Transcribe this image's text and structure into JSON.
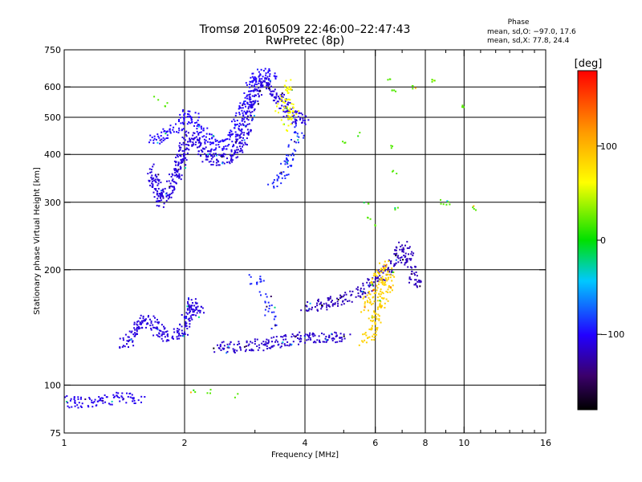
{
  "chart_data": {
    "type": "scatter",
    "title": "Tromsø 20160509 22:46:00–22:47:43",
    "subtitle": "RwPretec (8p)",
    "xlabel": "Frequency [MHz]",
    "ylabel": "Stationary phase Virtual Height [km]",
    "x_scale": "log",
    "y_scale": "log",
    "xlim": [
      1,
      16
    ],
    "ylim": [
      75,
      750
    ],
    "x_ticks": [
      1,
      2,
      4,
      6,
      8,
      10,
      16
    ],
    "x_tick_labels": [
      "1",
      "2",
      "4",
      "6",
      "8",
      "10",
      "16"
    ],
    "x_gridlines": [
      2,
      4,
      6,
      8,
      10
    ],
    "y_ticks": [
      75,
      100,
      200,
      300,
      400,
      500,
      600,
      750
    ],
    "y_tick_labels": [
      "75",
      "100",
      "200",
      "300",
      "400",
      "500",
      "600",
      "750"
    ],
    "y_gridlines": [
      100,
      200,
      300,
      400,
      500,
      600
    ],
    "grid": true,
    "color_by": "phase_deg",
    "colorbar": {
      "label": "[deg]",
      "range": [
        -180,
        180
      ],
      "tick_values": [
        100,
        0,
        -100
      ],
      "tick_labels": [
        "100",
        "0",
        "−100"
      ]
    },
    "stats": {
      "heading": "Phase",
      "line_O": "mean, sd,O: −97.0, 17.6",
      "line_X": "mean, sd,X:  77.8, 24.4"
    },
    "clusters": [
      {
        "name": "F-region O-trace",
        "phase_deg": -110,
        "density": 1.6,
        "points": [
          [
            1.65,
            370
          ],
          [
            1.7,
            330
          ],
          [
            1.75,
            300
          ],
          [
            1.85,
            330
          ],
          [
            1.95,
            380
          ],
          [
            2.0,
            420
          ],
          [
            2.1,
            450
          ],
          [
            2.2,
            420
          ],
          [
            2.3,
            390
          ],
          [
            2.45,
            385
          ],
          [
            2.6,
            390
          ],
          [
            2.75,
            420
          ],
          [
            2.85,
            470
          ],
          [
            2.95,
            540
          ],
          [
            3.05,
            600
          ],
          [
            3.15,
            620
          ],
          [
            3.3,
            600
          ],
          [
            3.45,
            560
          ],
          [
            3.6,
            520
          ],
          [
            3.8,
            490
          ],
          [
            4.0,
            500
          ]
        ]
      },
      {
        "name": "F-region upper spread",
        "phase_deg": -100,
        "density": 1.2,
        "points": [
          [
            1.65,
            430
          ],
          [
            1.75,
            450
          ],
          [
            1.9,
            470
          ],
          [
            2.05,
            510
          ],
          [
            2.2,
            470
          ],
          [
            2.4,
            420
          ],
          [
            2.6,
            430
          ],
          [
            2.8,
            520
          ],
          [
            3.0,
            640
          ],
          [
            3.2,
            650
          ],
          [
            3.35,
            640
          ]
        ]
      },
      {
        "name": "F-region inner retrace",
        "phase_deg": -90,
        "density": 0.8,
        "points": [
          [
            3.3,
            330
          ],
          [
            3.45,
            340
          ],
          [
            3.6,
            370
          ],
          [
            3.75,
            420
          ],
          [
            3.9,
            460
          ]
        ]
      },
      {
        "name": "Phase noise near 3.6 MHz",
        "phase_deg": 60,
        "density": 0.6,
        "points": [
          [
            3.45,
            520
          ],
          [
            3.55,
            570
          ],
          [
            3.65,
            610
          ],
          [
            3.6,
            470
          ],
          [
            3.75,
            530
          ]
        ]
      },
      {
        "name": "Es / low layer 1-1.4 MHz",
        "phase_deg": -105,
        "density": 1.0,
        "points": [
          [
            1.0,
            91
          ],
          [
            1.05,
            90
          ],
          [
            1.1,
            90
          ],
          [
            1.18,
            90
          ],
          [
            1.26,
            91
          ],
          [
            1.33,
            92
          ],
          [
            1.4,
            93
          ],
          [
            1.48,
            92
          ],
          [
            1.55,
            93
          ]
        ]
      },
      {
        "name": "E-region trace",
        "phase_deg": -110,
        "density": 1.4,
        "points": [
          [
            1.4,
            126
          ],
          [
            1.45,
            130
          ],
          [
            1.52,
            140
          ],
          [
            1.6,
            150
          ],
          [
            1.7,
            140
          ],
          [
            1.8,
            133
          ],
          [
            1.9,
            135
          ],
          [
            2.0,
            140
          ],
          [
            2.05,
            155
          ],
          [
            2.1,
            165
          ],
          [
            2.2,
            150
          ]
        ]
      },
      {
        "name": "Valley trace 2.4-4 MHz",
        "phase_deg": -115,
        "density": 1.2,
        "points": [
          [
            2.4,
            126
          ],
          [
            2.6,
            125
          ],
          [
            2.8,
            126
          ],
          [
            3.0,
            127
          ],
          [
            3.2,
            128
          ],
          [
            3.4,
            129
          ],
          [
            3.6,
            131
          ],
          [
            3.8,
            132
          ],
          [
            4.0,
            133
          ],
          [
            4.2,
            133
          ],
          [
            4.5,
            134
          ],
          [
            4.8,
            133
          ],
          [
            5.1,
            135
          ]
        ]
      },
      {
        "name": "Lower F2 O-trace",
        "phase_deg": -120,
        "density": 1.2,
        "points": [
          [
            4.0,
            160
          ],
          [
            4.3,
            162
          ],
          [
            4.6,
            164
          ],
          [
            4.9,
            166
          ],
          [
            5.2,
            170
          ],
          [
            5.5,
            175
          ],
          [
            5.8,
            180
          ],
          [
            6.1,
            190
          ],
          [
            6.4,
            200
          ],
          [
            6.7,
            210
          ],
          [
            7.0,
            230
          ],
          [
            7.2,
            220
          ],
          [
            7.4,
            200
          ],
          [
            7.6,
            180
          ]
        ]
      },
      {
        "name": "X-trace",
        "phase_deg": 85,
        "density": 1.2,
        "points": [
          [
            5.6,
            130
          ],
          [
            5.8,
            135
          ],
          [
            6.0,
            150
          ],
          [
            6.2,
            165
          ],
          [
            6.4,
            180
          ],
          [
            6.5,
            195
          ],
          [
            6.3,
            205
          ],
          [
            6.1,
            190
          ],
          [
            5.9,
            175
          ],
          [
            5.7,
            160
          ]
        ]
      },
      {
        "name": "Fragmented 2.8-3.2 MHz",
        "phase_deg": -90,
        "density": 0.5,
        "points": [
          [
            2.9,
            190
          ],
          [
            3.0,
            189
          ],
          [
            3.1,
            190
          ],
          [
            3.3,
            150
          ],
          [
            3.4,
            145
          ]
        ]
      },
      {
        "name": "Scattered outliers",
        "phase_deg": 20,
        "density": 0.3,
        "points": [
          [
            6.5,
            620
          ],
          [
            6.7,
            580
          ],
          [
            7.5,
            600
          ],
          [
            8.4,
            620
          ],
          [
            10.0,
            530
          ],
          [
            8.8,
            300
          ],
          [
            9.1,
            300
          ],
          [
            6.6,
            420
          ],
          [
            6.7,
            360
          ],
          [
            6.8,
            290
          ],
          [
            10.6,
            290
          ],
          [
            5.7,
            300
          ],
          [
            5.8,
            270
          ],
          [
            6.0,
            260
          ],
          [
            2.1,
            96
          ],
          [
            2.3,
            96
          ],
          [
            2.7,
            94
          ],
          [
            1.7,
            560
          ],
          [
            1.8,
            540
          ],
          [
            5.0,
            430
          ],
          [
            5.5,
            450
          ]
        ]
      }
    ]
  }
}
